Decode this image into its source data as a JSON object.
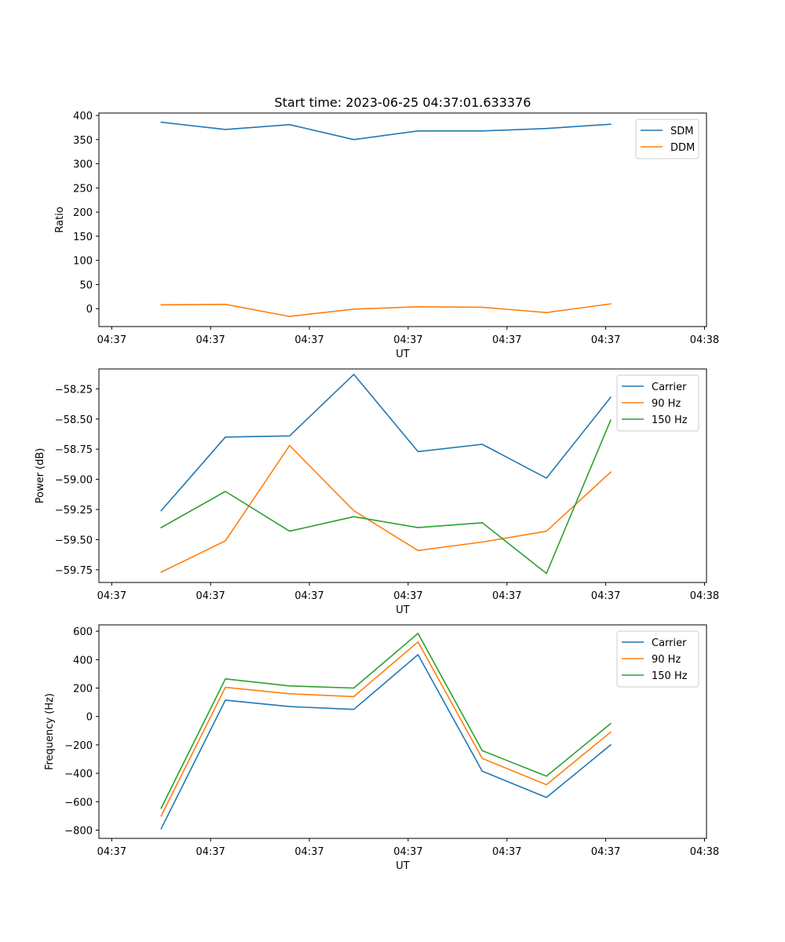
{
  "figure": {
    "title": "Start time: 2023-06-25 04:37:01.633376"
  },
  "chart_data": [
    {
      "type": "line",
      "xlabel": "UT",
      "ylabel": "Ratio",
      "x_tick_labels": [
        "04:37",
        "04:37",
        "04:37",
        "04:37",
        "04:37",
        "04:37",
        "04:38"
      ],
      "x_tick_positions": [
        0,
        1,
        2,
        3,
        4,
        5,
        6
      ],
      "x": [
        0.5,
        1.15,
        1.8,
        2.45,
        3.1,
        3.75,
        4.4,
        5.05
      ],
      "xlim": [
        -0.13,
        6.02
      ],
      "ylim": [
        -37,
        405
      ],
      "yticks": [
        0,
        50,
        100,
        150,
        200,
        250,
        300,
        350,
        400
      ],
      "legend": "top-right",
      "series": [
        {
          "name": "SDM",
          "color": "#1f77b4",
          "values": [
            386,
            371,
            381,
            350,
            368,
            368,
            373,
            382
          ]
        },
        {
          "name": "DDM",
          "color": "#ff7f0e",
          "values": [
            8,
            9,
            -16,
            -1,
            4,
            3,
            -8,
            10
          ]
        }
      ]
    },
    {
      "type": "line",
      "xlabel": "UT",
      "ylabel": "Power (dB)",
      "x_tick_labels": [
        "04:37",
        "04:37",
        "04:37",
        "04:37",
        "04:37",
        "04:37",
        "04:38"
      ],
      "x_tick_positions": [
        0,
        1,
        2,
        3,
        4,
        5,
        6
      ],
      "x": [
        0.5,
        1.15,
        1.8,
        2.45,
        3.1,
        3.75,
        4.4,
        5.05
      ],
      "xlim": [
        -0.13,
        6.02
      ],
      "ylim": [
        -59.855,
        -58.085
      ],
      "yticks": [
        -59.75,
        -59.5,
        -59.25,
        -59.0,
        -58.75,
        -58.5,
        -58.25
      ],
      "ytick_labels": [
        "−59.75",
        "−59.50",
        "−59.25",
        "−59.00",
        "−58.75",
        "−58.50",
        "−58.25"
      ],
      "legend": "top-right",
      "series": [
        {
          "name": "Carrier",
          "color": "#1f77b4",
          "values": [
            -59.26,
            -58.65,
            -58.64,
            -58.13,
            -58.77,
            -58.71,
            -58.99,
            -58.32
          ]
        },
        {
          "name": "90 Hz",
          "color": "#ff7f0e",
          "values": [
            -59.77,
            -59.51,
            -58.72,
            -59.26,
            -59.59,
            -59.52,
            -59.43,
            -58.94
          ]
        },
        {
          "name": "150 Hz",
          "color": "#2ca02c",
          "values": [
            -59.4,
            -59.1,
            -59.43,
            -59.31,
            -59.4,
            -59.36,
            -59.78,
            -58.51
          ]
        }
      ]
    },
    {
      "type": "line",
      "xlabel": "UT",
      "ylabel": "Frequency (Hz)",
      "x_tick_labels": [
        "04:37",
        "04:37",
        "04:37",
        "04:37",
        "04:37",
        "04:37",
        "04:38"
      ],
      "x_tick_positions": [
        0,
        1,
        2,
        3,
        4,
        5,
        6
      ],
      "x": [
        0.5,
        1.15,
        1.8,
        2.45,
        3.1,
        3.75,
        4.4,
        5.05
      ],
      "xlim": [
        -0.13,
        6.02
      ],
      "ylim": [
        -858,
        645
      ],
      "yticks": [
        -800,
        -600,
        -400,
        -200,
        0,
        200,
        400,
        600
      ],
      "ytick_labels": [
        "−800",
        "−600",
        "−400",
        "−200",
        "0",
        "200",
        "400",
        "600"
      ],
      "legend": "top-right",
      "series": [
        {
          "name": "Carrier",
          "color": "#1f77b4",
          "values": [
            -790,
            115,
            70,
            50,
            435,
            -385,
            -570,
            -200
          ]
        },
        {
          "name": "90 Hz",
          "color": "#ff7f0e",
          "values": [
            -700,
            205,
            160,
            140,
            525,
            -295,
            -480,
            -110
          ]
        },
        {
          "name": "150 Hz",
          "color": "#2ca02c",
          "values": [
            -645,
            265,
            215,
            200,
            585,
            -240,
            -420,
            -50
          ]
        }
      ]
    }
  ]
}
